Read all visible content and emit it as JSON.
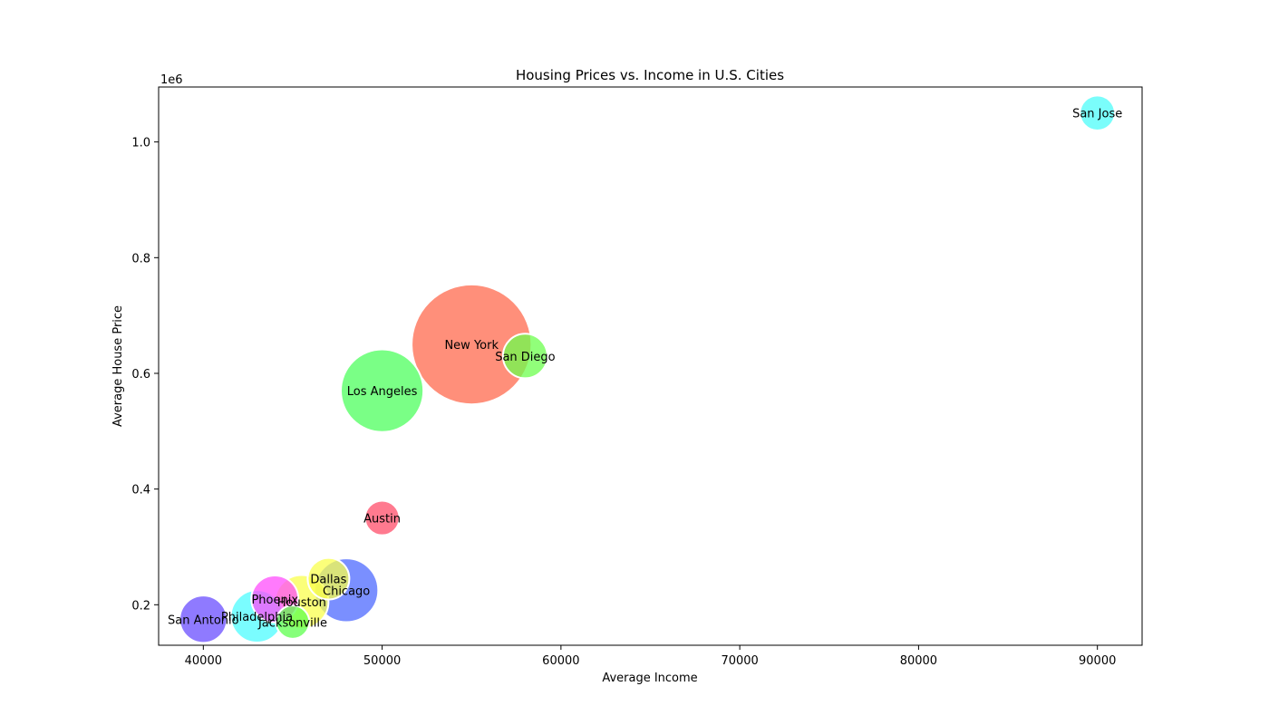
{
  "chart_data": {
    "type": "scatter",
    "title": "Housing Prices vs. Income in U.S. Cities",
    "xlabel": "Average Income",
    "ylabel": "Average House Price",
    "y_offset_label": "1e6",
    "xlim": [
      37500,
      92500
    ],
    "ylim": [
      130000,
      1095000
    ],
    "x_ticks": [
      40000,
      50000,
      60000,
      70000,
      80000,
      90000
    ],
    "x_tick_labels": [
      "40000",
      "50000",
      "60000",
      "70000",
      "80000",
      "90000"
    ],
    "y_ticks": [
      200000,
      400000,
      600000,
      800000,
      1000000
    ],
    "y_tick_labels": [
      "0.2",
      "0.4",
      "0.6",
      "0.8",
      "1.0"
    ],
    "grid": false,
    "points": [
      {
        "label": "New York",
        "x": 55000,
        "y": 650000,
        "size": 2400,
        "color": "#ff6a4d"
      },
      {
        "label": "Los Angeles",
        "x": 50000,
        "y": 570000,
        "size": 1140,
        "color": "#4dff5e"
      },
      {
        "label": "Chicago",
        "x": 48000,
        "y": 225000,
        "size": 680,
        "color": "#4d6aff"
      },
      {
        "label": "Houston",
        "x": 45500,
        "y": 205000,
        "size": 480,
        "color": "#f9ff4d"
      },
      {
        "label": "Phoenix",
        "x": 44000,
        "y": 210000,
        "size": 370,
        "color": "#ff4dfc"
      },
      {
        "label": "Philadelphia",
        "x": 43000,
        "y": 180000,
        "size": 460,
        "color": "#4dfcff"
      },
      {
        "label": "San Antonio",
        "x": 40000,
        "y": 175000,
        "size": 375,
        "color": "#6a4dff"
      },
      {
        "label": "San Diego",
        "x": 58000,
        "y": 630000,
        "size": 330,
        "color": "#6cff4d"
      },
      {
        "label": "Dallas",
        "x": 47000,
        "y": 245000,
        "size": 290,
        "color": "#f9ff4d"
      },
      {
        "label": "San Jose",
        "x": 90000,
        "y": 1050000,
        "size": 205,
        "color": "#4dfcf9"
      },
      {
        "label": "Austin",
        "x": 50000,
        "y": 350000,
        "size": 200,
        "color": "#ff4d6a"
      },
      {
        "label": "Jacksonville",
        "x": 45000,
        "y": 170000,
        "size": 185,
        "color": "#5eff4d"
      }
    ]
  }
}
